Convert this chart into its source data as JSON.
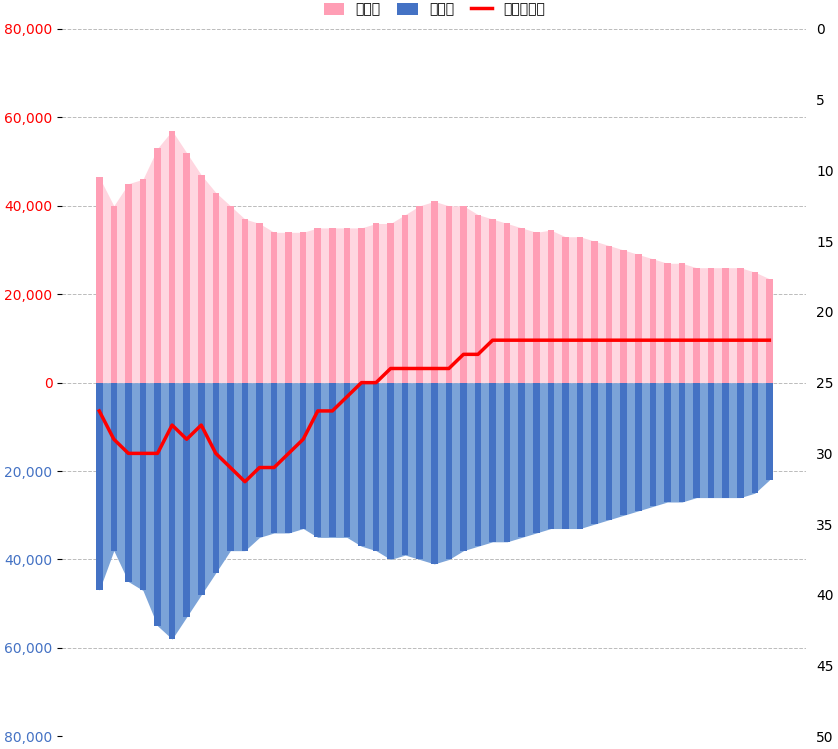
{
  "legend_girls": "女の子",
  "legend_boys": "男の子",
  "legend_ranking": "ランキング",
  "girls": [
    46500,
    40000,
    45000,
    46000,
    53000,
    57000,
    52000,
    47000,
    43000,
    40000,
    37000,
    36000,
    34000,
    34000,
    34000,
    35000,
    35000,
    35000,
    35000,
    36000,
    36000,
    38000,
    40000,
    41000,
    40000,
    40000,
    38000,
    37000,
    36000,
    35000,
    34000,
    34500,
    33000,
    33000,
    32000,
    31000,
    30000,
    29000,
    28000,
    27000,
    27000,
    26000,
    26000,
    26000,
    26000,
    25000,
    23500
  ],
  "boys": [
    -47000,
    -38000,
    -45000,
    -47000,
    -55000,
    -58000,
    -53000,
    -48000,
    -43000,
    -38000,
    -38000,
    -35000,
    -34000,
    -34000,
    -33000,
    -35000,
    -35000,
    -35000,
    -37000,
    -38000,
    -40000,
    -39000,
    -40000,
    -41000,
    -40000,
    -38000,
    -37000,
    -36000,
    -36000,
    -35000,
    -34000,
    -33000,
    -33000,
    -33000,
    -32000,
    -31000,
    -30000,
    -29000,
    -28000,
    -27000,
    -27000,
    -26000,
    -26000,
    -26000,
    -26000,
    -25000,
    -22000
  ],
  "ranking": [
    27,
    29,
    30,
    30,
    30,
    28,
    29,
    28,
    30,
    31,
    32,
    31,
    31,
    30,
    29,
    27,
    27,
    26,
    25,
    25,
    24,
    24,
    24,
    24,
    24,
    23,
    23,
    22,
    22,
    22,
    22,
    22,
    22,
    22,
    22,
    22,
    22,
    22,
    22,
    22,
    22,
    22,
    22,
    22,
    22,
    22,
    22
  ],
  "ylim_left": [
    -80000,
    80000
  ],
  "yticks_left": [
    -80000,
    -60000,
    -40000,
    -20000,
    0,
    20000,
    40000,
    60000,
    80000
  ],
  "right_yticks": [
    0,
    5,
    10,
    15,
    20,
    25,
    30,
    35,
    40,
    45,
    50
  ],
  "bar_color_girls": "#FF9EB5",
  "area_color_girls": "#FFD6E0",
  "bar_color_boys": "#4472C4",
  "area_color_boys": "#7BA3D8",
  "line_color": "#FF0000",
  "bg_color": "#FFFFFF",
  "grid_color": "#AAAAAA",
  "left_tick_color_positive": "#FF0000",
  "left_tick_color_negative": "#4472C4",
  "bar_width": 0.45
}
